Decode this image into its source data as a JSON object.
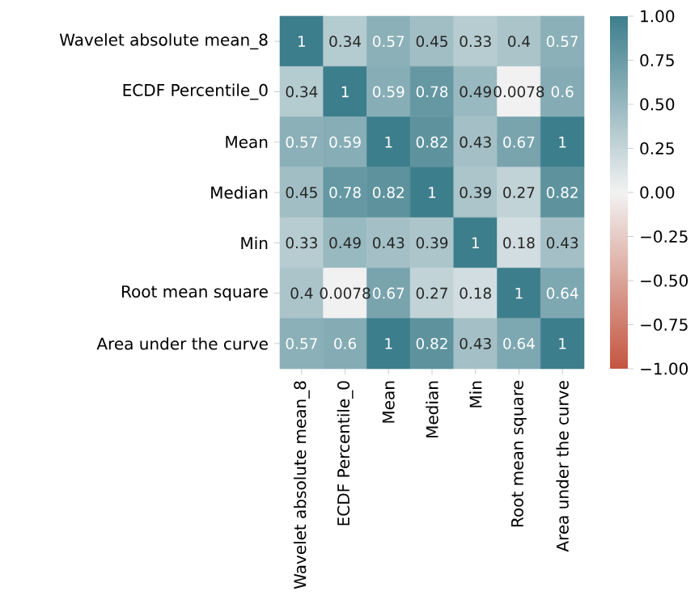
{
  "chart_data": {
    "type": "heatmap",
    "categories": [
      "Wavelet absolute mean_8",
      "ECDF Percentile_0",
      "Mean",
      "Median",
      "Min",
      "Root mean square",
      "Area under the curve"
    ],
    "y_categories": [
      "Wavelet absolute mean_8",
      "ECDF Percentile_0",
      "Mean",
      "Median",
      "Min",
      "Root mean square",
      "Area under the curve"
    ],
    "cells": [
      [
        1,
        0.34,
        0.57,
        0.45,
        0.33,
        0.4,
        0.57
      ],
      [
        0.34,
        1,
        0.59,
        0.78,
        0.49,
        0.0078,
        0.6
      ],
      [
        0.57,
        0.59,
        1,
        0.82,
        0.43,
        0.67,
        1
      ],
      [
        0.45,
        0.78,
        0.82,
        1,
        0.39,
        0.27,
        0.82
      ],
      [
        0.33,
        0.49,
        0.43,
        0.39,
        1,
        0.18,
        0.43
      ],
      [
        0.4,
        0.0078,
        0.67,
        0.27,
        0.18,
        1,
        0.64
      ],
      [
        0.57,
        0.6,
        1,
        0.82,
        0.43,
        0.64,
        1
      ]
    ],
    "data_labels": true,
    "clim": [
      -1,
      1
    ],
    "cticks": [
      {
        "value": -1,
        "label": "−1.00"
      },
      {
        "value": -0.75,
        "label": "−0.75"
      },
      {
        "value": -0.5,
        "label": "−0.50"
      },
      {
        "value": -0.25,
        "label": "−0.25"
      },
      {
        "value": 0,
        "label": "0.00"
      },
      {
        "value": 0.25,
        "label": "0.25"
      },
      {
        "value": 0.5,
        "label": "0.50"
      },
      {
        "value": 0.75,
        "label": "0.75"
      },
      {
        "value": 1,
        "label": "1.00"
      }
    ]
  }
}
